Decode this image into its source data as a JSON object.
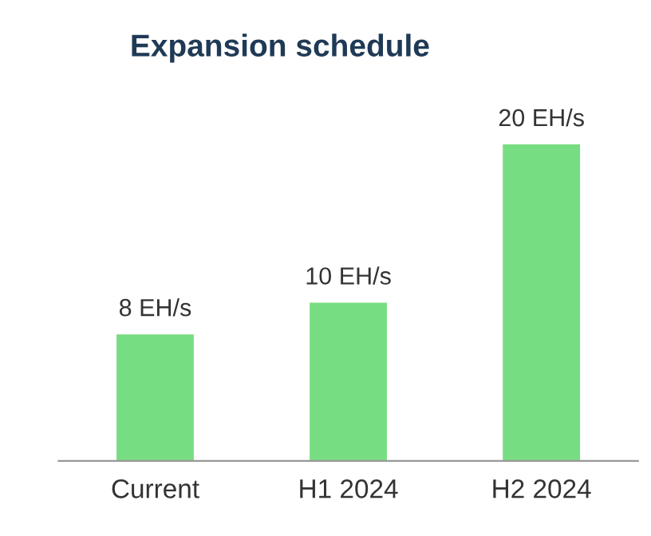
{
  "chart_data": {
    "type": "bar",
    "title": "Expansion schedule",
    "categories": [
      "Current",
      "H1 2024",
      "H2 2024"
    ],
    "values": [
      8,
      10,
      20
    ],
    "value_labels": [
      "8 EH/s",
      "10 EH/s",
      "20 EH/s"
    ],
    "color": "#77dd82",
    "grid": false,
    "legend": false
  }
}
